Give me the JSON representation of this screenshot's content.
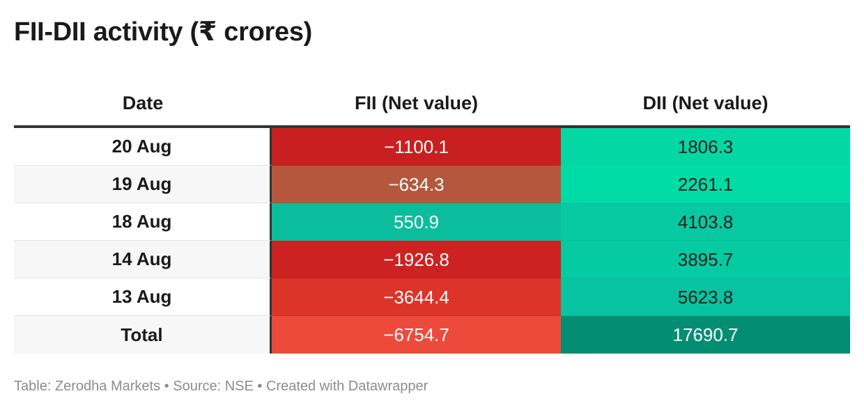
{
  "title": "FII-DII activity (₹ crores)",
  "chart_data": {
    "type": "table",
    "title": "FII-DII activity (₹ crores)",
    "columns": [
      "Date",
      "FII (Net value)",
      "DII (Net value)"
    ],
    "rows": [
      {
        "date": "20 Aug",
        "fii": "−1100.1",
        "dii": "1806.3",
        "fii_value": -1100.1,
        "dii_value": 1806.3,
        "fii_color": "#c82020",
        "dii_color": "#03d8a4",
        "dii_text_color": "#1f1f1f"
      },
      {
        "date": "19 Aug",
        "fii": "−634.3",
        "dii": "2261.1",
        "fii_value": -634.3,
        "dii_value": 2261.1,
        "fii_color": "#b5573c",
        "dii_color": "#01dca7",
        "dii_text_color": "#1f1f1f"
      },
      {
        "date": "18 Aug",
        "fii": "550.9",
        "dii": "4103.8",
        "fii_value": 550.9,
        "dii_value": 4103.8,
        "fii_color": "#0bbd9d",
        "dii_color": "#06c9a2",
        "dii_text_color": "#1f1f1f"
      },
      {
        "date": "14 Aug",
        "fii": "−1926.8",
        "dii": "3895.7",
        "fii_value": -1926.8,
        "dii_value": 3895.7,
        "fii_color": "#cc2222",
        "dii_color": "#05cba3",
        "dii_text_color": "#1f1f1f"
      },
      {
        "date": "13 Aug",
        "fii": "−3644.4",
        "dii": "5623.8",
        "fii_value": -3644.4,
        "dii_value": 5623.8,
        "fii_color": "#dc3429",
        "dii_color": "#08c3a0",
        "dii_text_color": "#1f1f1f"
      },
      {
        "date": "Total",
        "fii": "−6754.7",
        "dii": "17690.7",
        "fii_value": -6754.7,
        "dii_value": 17690.7,
        "fii_color": "#ee4a3c",
        "dii_color": "#038e74",
        "dii_text_color": "#ffffff"
      }
    ]
  },
  "footer": {
    "table_label": "Table: Zerodha Markets",
    "separator": " • ",
    "source": "Source: NSE",
    "created": "Created with Datawrapper"
  }
}
